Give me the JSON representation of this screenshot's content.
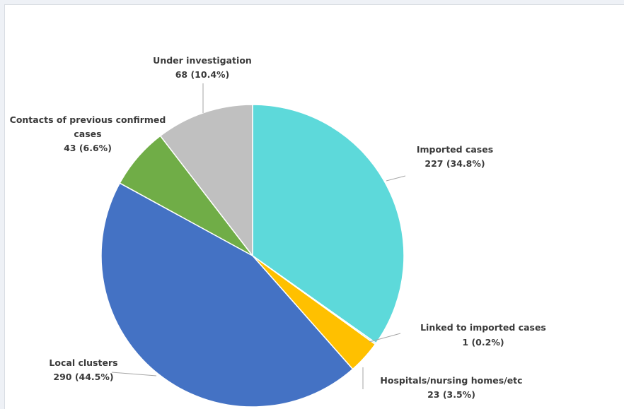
{
  "chart_data": {
    "type": "pie",
    "title": "",
    "slices": [
      {
        "name": "Imported cases",
        "value_text": "227 (34.8%)",
        "value": 227,
        "percent": 34.8,
        "color": "#5dd9da"
      },
      {
        "name": "Linked to imported cases",
        "value_text": "1 (0.2%)",
        "value": 1,
        "percent": 0.2,
        "color": "#a8dfe0"
      },
      {
        "name": "Hospitals/nursing  homes/etc",
        "value_text": "23 (3.5%)",
        "value": 23,
        "percent": 3.5,
        "color": "#ffc000"
      },
      {
        "name": "Local clusters",
        "value_text": "290 (44.5%)",
        "value": 290,
        "percent": 44.5,
        "color": "#4472c4"
      },
      {
        "name": "Contacts of previous confirmed cases",
        "name_lines": [
          "Contacts of previous confirmed",
          "cases"
        ],
        "value_text": "43 (6.6%)",
        "value": 43,
        "percent": 6.6,
        "color": "#70ad47"
      },
      {
        "name": "Under investigation",
        "value_text": "68 (10.4%)",
        "value": 68,
        "percent": 10.4,
        "color": "#c0c0c0"
      }
    ],
    "start_angle": "12 o'clock",
    "direction": "clockwise",
    "legend": "none (data labels with leader lines)"
  }
}
